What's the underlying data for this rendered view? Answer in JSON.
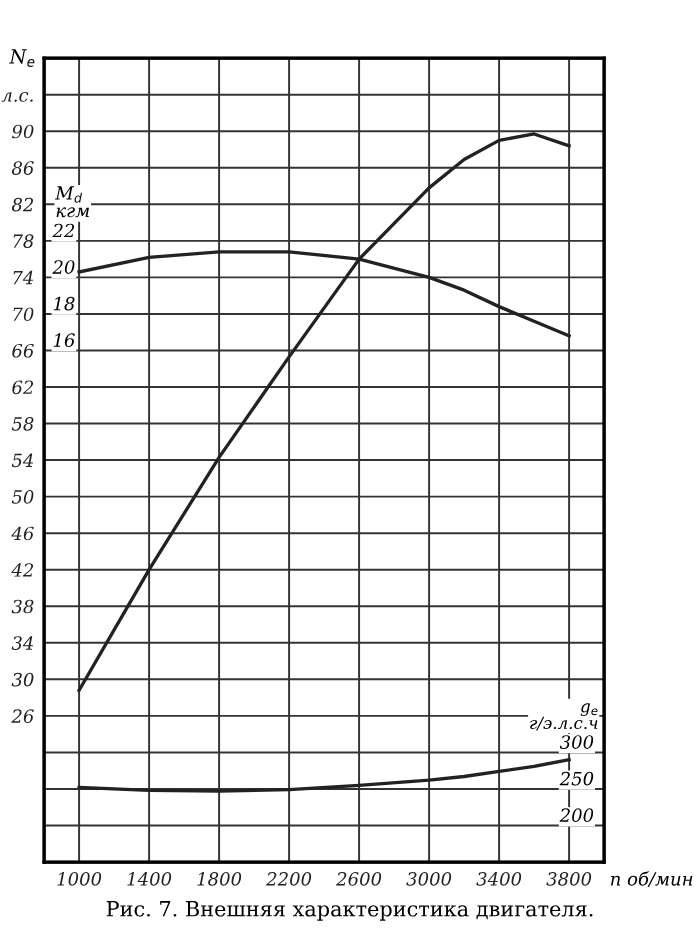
{
  "chart_data": {
    "type": "line",
    "annotations": [
      "Рис. 7. Внешняя характеристика двигателя."
    ],
    "ylabel": "N$_{e}$",
    "y2label": "M$_{d}$\nкгм",
    "y3label": "g$_{e}$\nг/э.л.с.ч",
    "xlabel": "n об/мин",
    "x": [
      1000,
      1400,
      1800,
      2200,
      2600,
      3000,
      3200,
      3400,
      3600,
      3800
    ],
    "xlim": [
      800,
      4000
    ],
    "xticks": [
      1000,
      1400,
      1800,
      2200,
      2600,
      3000,
      3400,
      3800
    ],
    "ylim": [
      10,
      98
    ],
    "yticks": [
      {
        "value": 14,
        "label": null
      },
      {
        "value": 18,
        "label": null
      },
      {
        "value": 22,
        "label": null
      },
      26,
      30,
      34,
      38,
      42,
      46,
      50,
      54,
      58,
      62,
      66,
      70,
      74,
      78,
      82,
      86,
      90,
      {
        "value": 94,
        "label": "л.с."
      }
    ],
    "y2lim": [
      -12,
      32
    ],
    "y2ticks": [
      16,
      18,
      20,
      22
    ],
    "y3lim": [
      150,
      1250
    ],
    "y3ticks": [
      200,
      250,
      300
    ],
    "grid": true,
    "series": [
      {
        "color": "#222222",
        "axis": "y",
        "values": [
          28.8,
          42,
          54.3,
          65.3,
          76,
          83.8,
          86.9,
          89,
          89.7,
          88.4
        ]
      },
      {
        "color": "#222222",
        "axis": "y2",
        "values": [
          20.3,
          21.1,
          21.4,
          21.4,
          21.0,
          20.0,
          19.3,
          18.4,
          17.6,
          16.8
        ]
      },
      {
        "color": "#222222",
        "axis": "y3",
        "values": [
          252,
          248,
          247,
          249,
          255,
          262,
          267,
          274,
          281,
          290
        ]
      }
    ]
  }
}
